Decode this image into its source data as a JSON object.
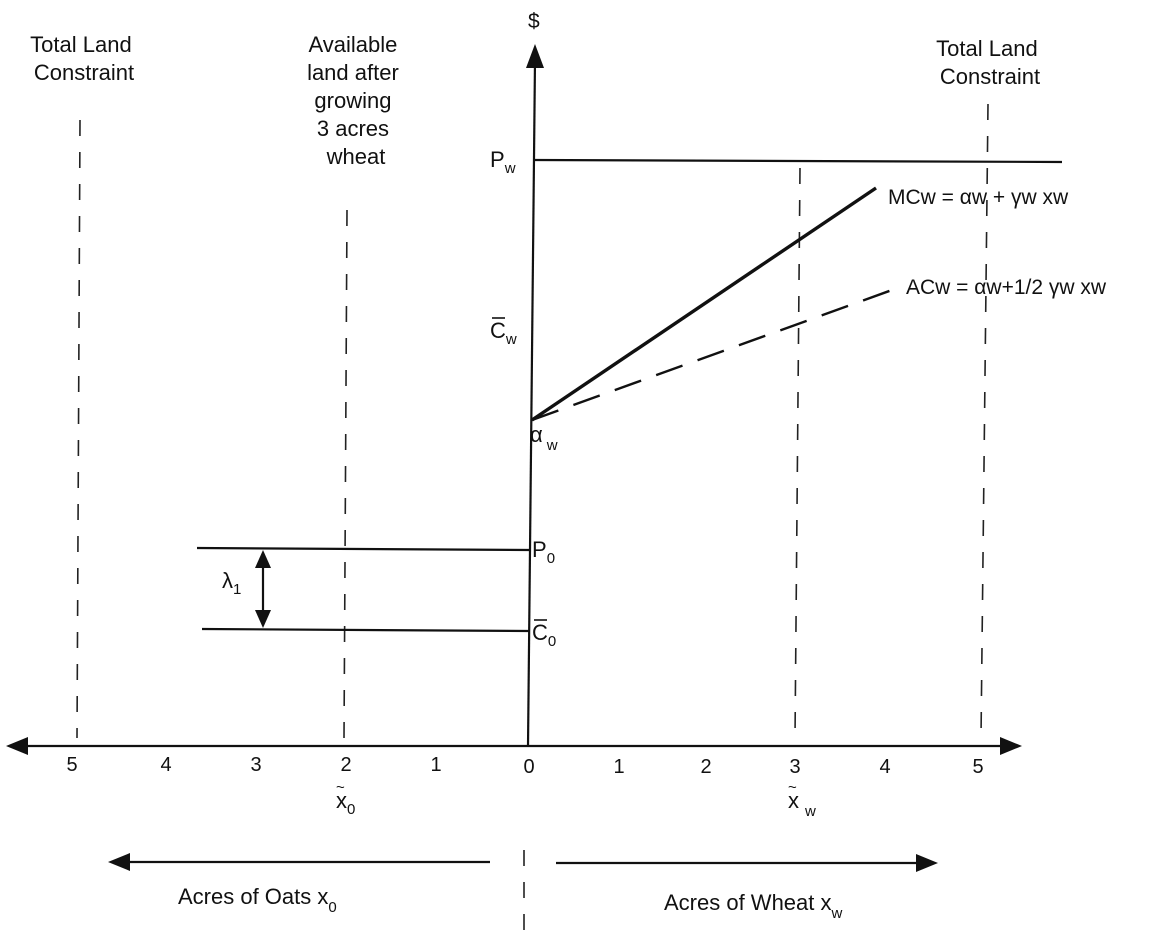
{
  "labels": {
    "y_axis": "$",
    "total_land_left": [
      "Total Land",
      "Constraint"
    ],
    "total_land_right": [
      "Total Land",
      "Constraint"
    ],
    "available_land": [
      "Available",
      "land after",
      "growing",
      "3 acres",
      "wheat"
    ],
    "p_w": {
      "main": "P",
      "sub": "w"
    },
    "c_bar_w": {
      "main": "C",
      "sub": "w"
    },
    "alpha_w": {
      "main": "α",
      "sub": "w"
    },
    "p_0": {
      "main": "P",
      "sub": "0"
    },
    "c_bar_0": {
      "main": "C",
      "sub": "0"
    },
    "lambda_1": {
      "main": "λ",
      "sub": "1"
    },
    "mc_w": "MCw = αw + γw xw",
    "ac_w": "ACw = αw+1/2 γw xw",
    "x_tilde_0": {
      "main": "x",
      "sub": "0"
    },
    "x_tilde_w": {
      "main": "x",
      "sub": "w"
    },
    "acres_oats": {
      "main": "Acres of Oats  x",
      "sub": "0"
    },
    "acres_wheat": {
      "main": "Acres of Wheat  x",
      "sub": "w"
    }
  },
  "left_ticks": [
    "5",
    "4",
    "3",
    "2",
    "1"
  ],
  "right_ticks": [
    "0",
    "1",
    "2",
    "3",
    "4",
    "5"
  ]
}
